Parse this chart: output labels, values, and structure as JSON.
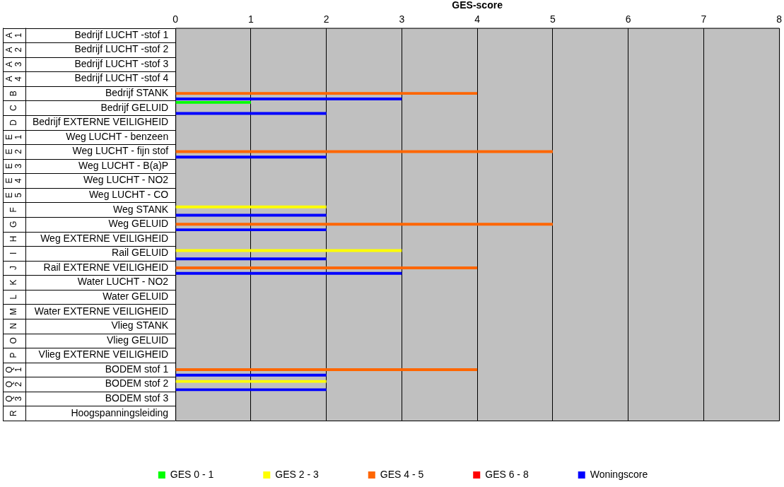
{
  "chart_data": {
    "type": "bar",
    "orientation": "horizontal",
    "xlabel": "GES-score",
    "categories": [
      "Bedrijf LUCHT -stof 1",
      "Bedrijf LUCHT -stof 2",
      "Bedrijf LUCHT -stof 3",
      "Bedrijf LUCHT -stof 4",
      "Bedrijf STANK",
      "Bedrijf GELUID",
      "Bedrijf EXTERNE VEILIGHEID",
      "Weg LUCHT - benzeen",
      "Weg LUCHT - fijn stof",
      "Weg LUCHT - B(a)P",
      "Weg LUCHT - NO2",
      "Weg LUCHT - CO",
      "Weg STANK",
      "Weg GELUID",
      "Weg EXTERNE VEILIGHEID",
      "Rail GELUID",
      "Rail EXTERNE VEILIGHEID",
      "Water LUCHT - NO2",
      "Water GELUID",
      "Water EXTERNE VEILIGHEID",
      "Vlieg STANK",
      "Vlieg GELUID",
      "Vlieg EXTERNE VEILIGHEID",
      "BODEM stof 1",
      "BODEM stof 2",
      "BODEM stof 3",
      "Hoogspanningsleiding"
    ],
    "series": [
      {
        "name": "GES 0 - 1",
        "color": "#00ff00",
        "values": [
          null,
          null,
          null,
          null,
          null,
          1,
          null,
          null,
          null,
          null,
          null,
          null,
          null,
          null,
          null,
          null,
          null,
          null,
          null,
          null,
          null,
          null,
          null,
          null,
          null,
          null,
          null
        ]
      },
      {
        "name": "GES 2 - 3",
        "color": "#ffff00",
        "values": [
          null,
          null,
          null,
          null,
          null,
          null,
          null,
          null,
          null,
          null,
          null,
          null,
          2,
          null,
          null,
          3,
          null,
          null,
          null,
          null,
          null,
          null,
          null,
          null,
          2,
          null,
          null
        ]
      },
      {
        "name": "GES 4 - 5",
        "color": "#ff6600",
        "values": [
          null,
          null,
          null,
          null,
          4,
          null,
          null,
          null,
          5,
          null,
          null,
          null,
          null,
          5,
          null,
          null,
          4,
          null,
          null,
          null,
          null,
          null,
          null,
          4,
          null,
          null,
          null
        ]
      },
      {
        "name": "GES 6 - 8",
        "color": "#ff0000",
        "values": [
          null,
          null,
          null,
          null,
          null,
          null,
          null,
          null,
          null,
          null,
          null,
          null,
          null,
          null,
          null,
          null,
          null,
          null,
          null,
          null,
          null,
          null,
          null,
          null,
          null,
          null,
          null
        ]
      },
      {
        "name": "Woningscore",
        "color": "#0000ff",
        "values": [
          null,
          null,
          null,
          null,
          3,
          2,
          null,
          null,
          2,
          null,
          null,
          null,
          2,
          2,
          null,
          2,
          3,
          null,
          null,
          null,
          null,
          null,
          null,
          2,
          2,
          null,
          null
        ]
      }
    ],
    "annotations": [
      "A 1",
      "A 2",
      "A 3",
      "A 4",
      "B",
      "C",
      "D",
      "E 1",
      "E 2",
      "E 3",
      "E 4",
      "E 5",
      "F",
      "G",
      "H",
      "I",
      "J",
      "K",
      "L",
      "M",
      "N",
      "O",
      "P",
      "Q 1",
      "Q 2",
      "Q 3",
      "R"
    ],
    "xlim": [
      0,
      8
    ],
    "xticks": [
      0,
      1,
      2,
      3,
      4,
      5,
      6,
      7,
      8
    ],
    "grid": "x",
    "legend": "bottom"
  }
}
